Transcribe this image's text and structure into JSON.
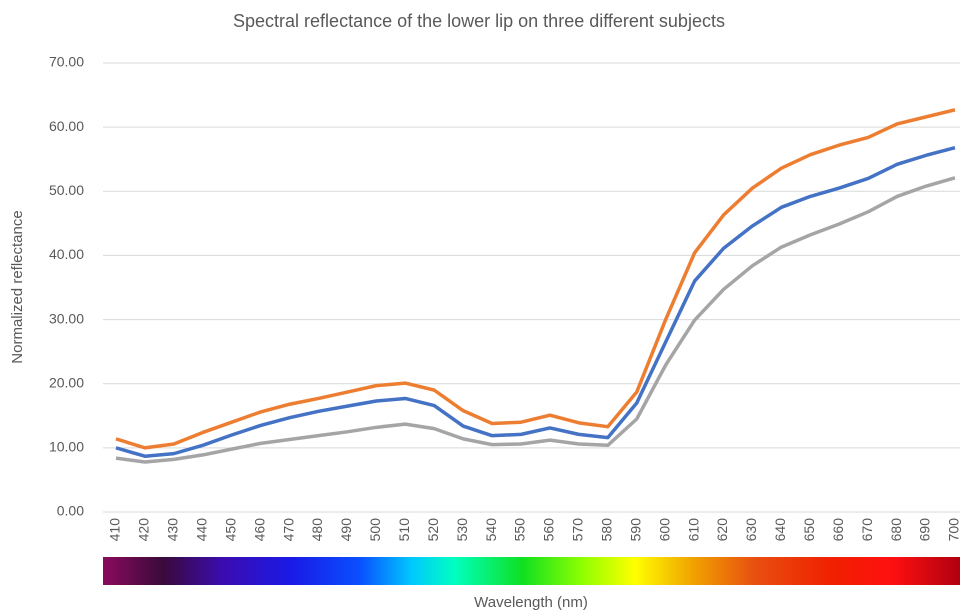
{
  "chart_data": {
    "type": "line",
    "title": "Spectral reflectance of the lower lip on three different subjects",
    "x_label": "Wavelength (nm)",
    "y_label": "Normalized reflectance",
    "categories": [
      "410",
      "420",
      "430",
      "440",
      "450",
      "460",
      "470",
      "480",
      "490",
      "500",
      "510",
      "520",
      "530",
      "540",
      "550",
      "560",
      "570",
      "580",
      "590",
      "600",
      "610",
      "620",
      "630",
      "640",
      "650",
      "660",
      "670",
      "680",
      "690",
      "700"
    ],
    "series": [
      {
        "color": "#ed7d31",
        "values": [
          11.4,
          10.0,
          10.6,
          12.4,
          14.0,
          15.6,
          16.8,
          17.7,
          18.7,
          19.7,
          20.1,
          19.0,
          15.8,
          13.8,
          14.0,
          15.1,
          13.9,
          13.3,
          18.7,
          30.0,
          40.4,
          46.3,
          50.5,
          53.6,
          55.7,
          57.2,
          58.4,
          60.5,
          61.6,
          62.7
        ]
      },
      {
        "color": "#4472c4",
        "values": [
          10.0,
          8.7,
          9.1,
          10.4,
          12.0,
          13.5,
          14.7,
          15.7,
          16.5,
          17.3,
          17.7,
          16.6,
          13.4,
          11.9,
          12.1,
          13.1,
          12.1,
          11.6,
          17.0,
          26.5,
          36.0,
          41.1,
          44.6,
          47.5,
          49.2,
          50.5,
          52.0,
          54.2,
          55.6,
          56.8
        ]
      },
      {
        "color": "#a5a5a5",
        "values": [
          8.4,
          7.8,
          8.2,
          8.9,
          9.8,
          10.7,
          11.3,
          11.9,
          12.5,
          13.2,
          13.7,
          13.0,
          11.4,
          10.5,
          10.6,
          11.2,
          10.6,
          10.4,
          14.5,
          22.9,
          29.9,
          34.7,
          38.4,
          41.3,
          43.2,
          44.9,
          46.8,
          49.2,
          50.8,
          52.1
        ]
      }
    ],
    "ylim": [
      0,
      70
    ],
    "yticks": [
      {
        "value": 0,
        "label": "0.00"
      },
      {
        "value": 10,
        "label": "10.00"
      },
      {
        "value": 20,
        "label": "20.00"
      },
      {
        "value": 30,
        "label": "30.00"
      },
      {
        "value": 40,
        "label": "40.00"
      },
      {
        "value": 50,
        "label": "50.00"
      },
      {
        "value": 60,
        "label": "60.00"
      },
      {
        "value": 70,
        "label": "70.00"
      }
    ],
    "grid": true
  }
}
